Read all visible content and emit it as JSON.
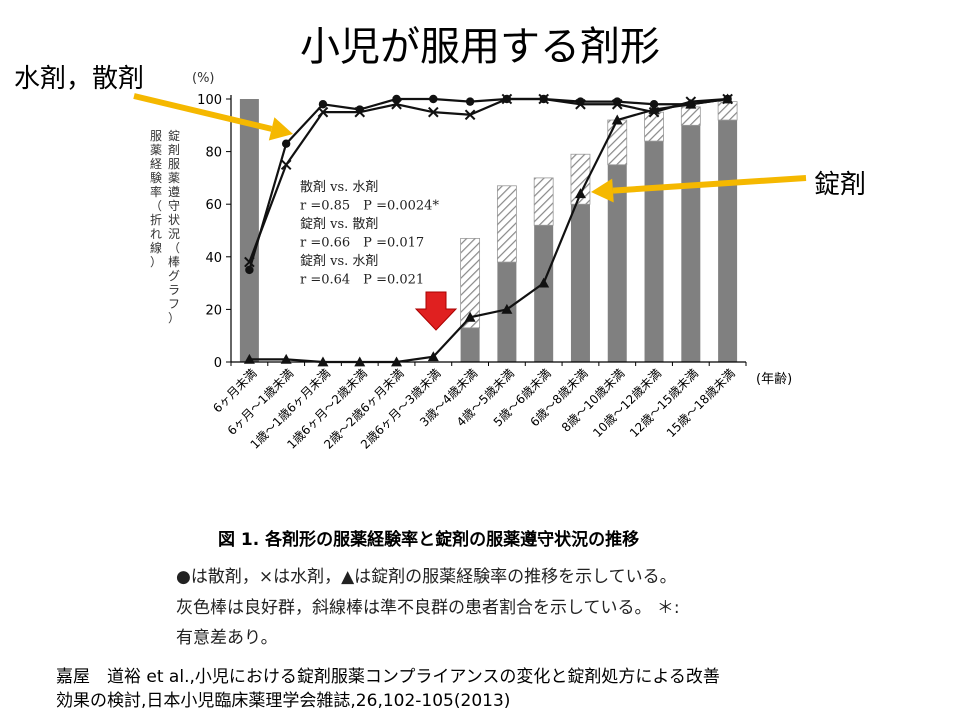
{
  "title": "小児が服用する剤形",
  "annotations": {
    "liquid_powder": "水剤，散剤",
    "tablet": "錠剤"
  },
  "figure": {
    "caption": "図 1.  各剤形の服薬経験率と錠剤の服薬遵守状況の推移",
    "description": [
      "●は散剤，×は水剤，▲は錠剤の服薬経験率の推移を示している。",
      "灰色棒は良好群，斜線棒は準不良群の患者割合を示している。 ＊:",
      "有意差あり。"
    ]
  },
  "citation": [
    "嘉屋　道裕 et al.,小児における錠剤服薬コンプライアンスの変化と錠剤処方による改善",
    "効果の検討,日本小児臨床薬理学会雑誌,26,102-105(2013)"
  ],
  "chart_data": {
    "type": "bar",
    "unit_label": "(%)",
    "x_unit_label": "(年齢)",
    "ylabel_line1": "服薬経験率（折れ線）",
    "ylabel_line2": "錠剤服薬遵守状況（棒グラフ）",
    "ylim": [
      0,
      100
    ],
    "y_ticks": [
      0,
      20,
      40,
      60,
      80,
      100
    ],
    "categories": [
      "6ヶ月未満",
      "6ヶ月〜1歳未満",
      "1歳〜1歳6ヶ月未満",
      "1歳6ヶ月〜2歳未満",
      "2歳〜2歳6ヶ月未満",
      "2歳6ヶ月〜3歳未満",
      "3歳〜4歳未満",
      "4歳〜5歳未満",
      "5歳〜6歳未満",
      "6歳〜8歳未満",
      "8歳〜10歳未満",
      "10歳〜12歳未満",
      "12歳〜15歳未満",
      "15歳〜18歳未満"
    ],
    "bar_series": [
      {
        "name": "良好群",
        "color": "#808080",
        "values": [
          100,
          0,
          0,
          0,
          0,
          0,
          13,
          38,
          52,
          60,
          75,
          84,
          90,
          92
        ]
      },
      {
        "name": "準不良群",
        "color": "#ffffff",
        "pattern": "hatched",
        "values": [
          0,
          0,
          0,
          0,
          0,
          0,
          34,
          29,
          18,
          19,
          17,
          11,
          7,
          7
        ]
      }
    ],
    "line_series": [
      {
        "name": "散剤",
        "marker": "circle",
        "values": [
          35,
          83,
          98,
          96,
          100,
          100,
          99,
          100,
          100,
          99,
          99,
          98,
          98,
          100
        ]
      },
      {
        "name": "水剤",
        "marker": "cross",
        "values": [
          38,
          75,
          95,
          95,
          98,
          95,
          94,
          100,
          100,
          98,
          98,
          95,
          99,
          100
        ]
      },
      {
        "name": "錠剤",
        "marker": "triangle",
        "values": [
          1,
          1,
          0,
          0,
          0,
          2,
          17,
          20,
          30,
          64,
          92,
          96,
          98,
          100
        ]
      }
    ],
    "stats_text": [
      "散剤 vs. 水剤",
      "r =0.85　P =0.0024*",
      "錠剤 vs. 散剤",
      "r =0.66　P =0.017",
      "錠剤 vs. 水剤",
      "r =0.64　P =0.021"
    ],
    "arrow_color": "#f5b800",
    "highlight_arrow_color": "#e02020"
  }
}
